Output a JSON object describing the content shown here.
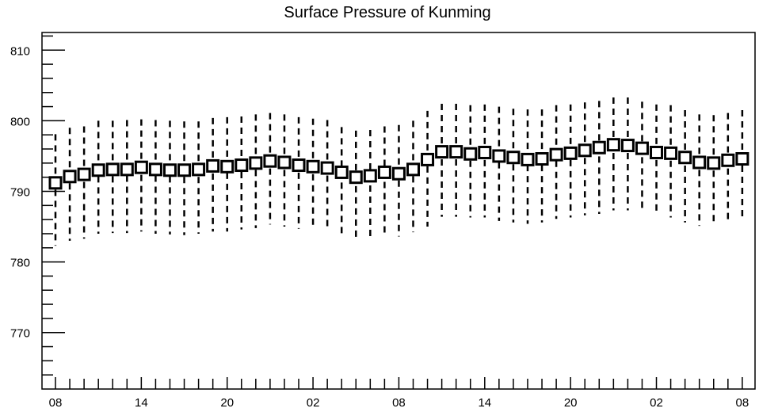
{
  "chart_data": {
    "type": "box",
    "title": "Surface Pressure of Kunming",
    "xlabel": "",
    "ylabel": "",
    "ylim": [
      762,
      812.5
    ],
    "yticks": [
      770,
      780,
      790,
      800,
      810
    ],
    "ytick_labels": [
      "770",
      "780",
      "790",
      "800",
      "810"
    ],
    "xtick_labels": [
      "08",
      "14",
      "20",
      "02",
      "08",
      "14",
      "20",
      "02",
      "08"
    ],
    "grid": false,
    "legend": "none",
    "series": [
      {
        "median": [
          791.2,
          792.1,
          792.4,
          793.0,
          793.1,
          793.1,
          793.4,
          793.1,
          793.0,
          793.0,
          793.1,
          793.6,
          793.5,
          793.7,
          794.0,
          794.3,
          794.1,
          793.7,
          793.5,
          793.3,
          792.7,
          792.0,
          792.2,
          792.7,
          792.5,
          793.1,
          794.5,
          795.6,
          795.6,
          795.3,
          795.5,
          795.0,
          794.8,
          794.5,
          794.6,
          795.2,
          795.4,
          795.8,
          796.2,
          796.6,
          796.5,
          796.1,
          795.5,
          795.4,
          794.8,
          794.1,
          794.0,
          794.4,
          794.6
        ],
        "upper": [
          798.1,
          799.0,
          799.2,
          800.0,
          800.0,
          800.1,
          800.2,
          800.1,
          800.0,
          799.9,
          799.9,
          800.4,
          800.5,
          800.6,
          800.9,
          801.1,
          800.9,
          800.5,
          800.3,
          800.1,
          799.1,
          798.6,
          798.7,
          799.2,
          799.4,
          800.0,
          801.4,
          802.4,
          802.4,
          802.2,
          802.3,
          802.0,
          801.7,
          801.6,
          801.6,
          802.2,
          802.3,
          802.6,
          802.8,
          803.3,
          803.3,
          802.7,
          802.3,
          802.2,
          801.5,
          800.9,
          800.8,
          801.1,
          801.5
        ],
        "lower": [
          782.3,
          783.0,
          783.3,
          784.0,
          784.1,
          784.1,
          784.3,
          784.0,
          783.9,
          783.8,
          784.0,
          784.3,
          784.3,
          784.6,
          784.8,
          785.3,
          785.0,
          784.7,
          784.6,
          784.4,
          783.5,
          783.3,
          783.3,
          783.6,
          783.6,
          784.2,
          785.0,
          786.4,
          786.4,
          786.3,
          786.3,
          785.8,
          785.6,
          785.4,
          785.6,
          786.1,
          786.3,
          786.6,
          786.8,
          787.3,
          787.3,
          787.1,
          786.7,
          786.3,
          785.6,
          785.1,
          785.1,
          785.5,
          785.9
        ]
      }
    ]
  }
}
